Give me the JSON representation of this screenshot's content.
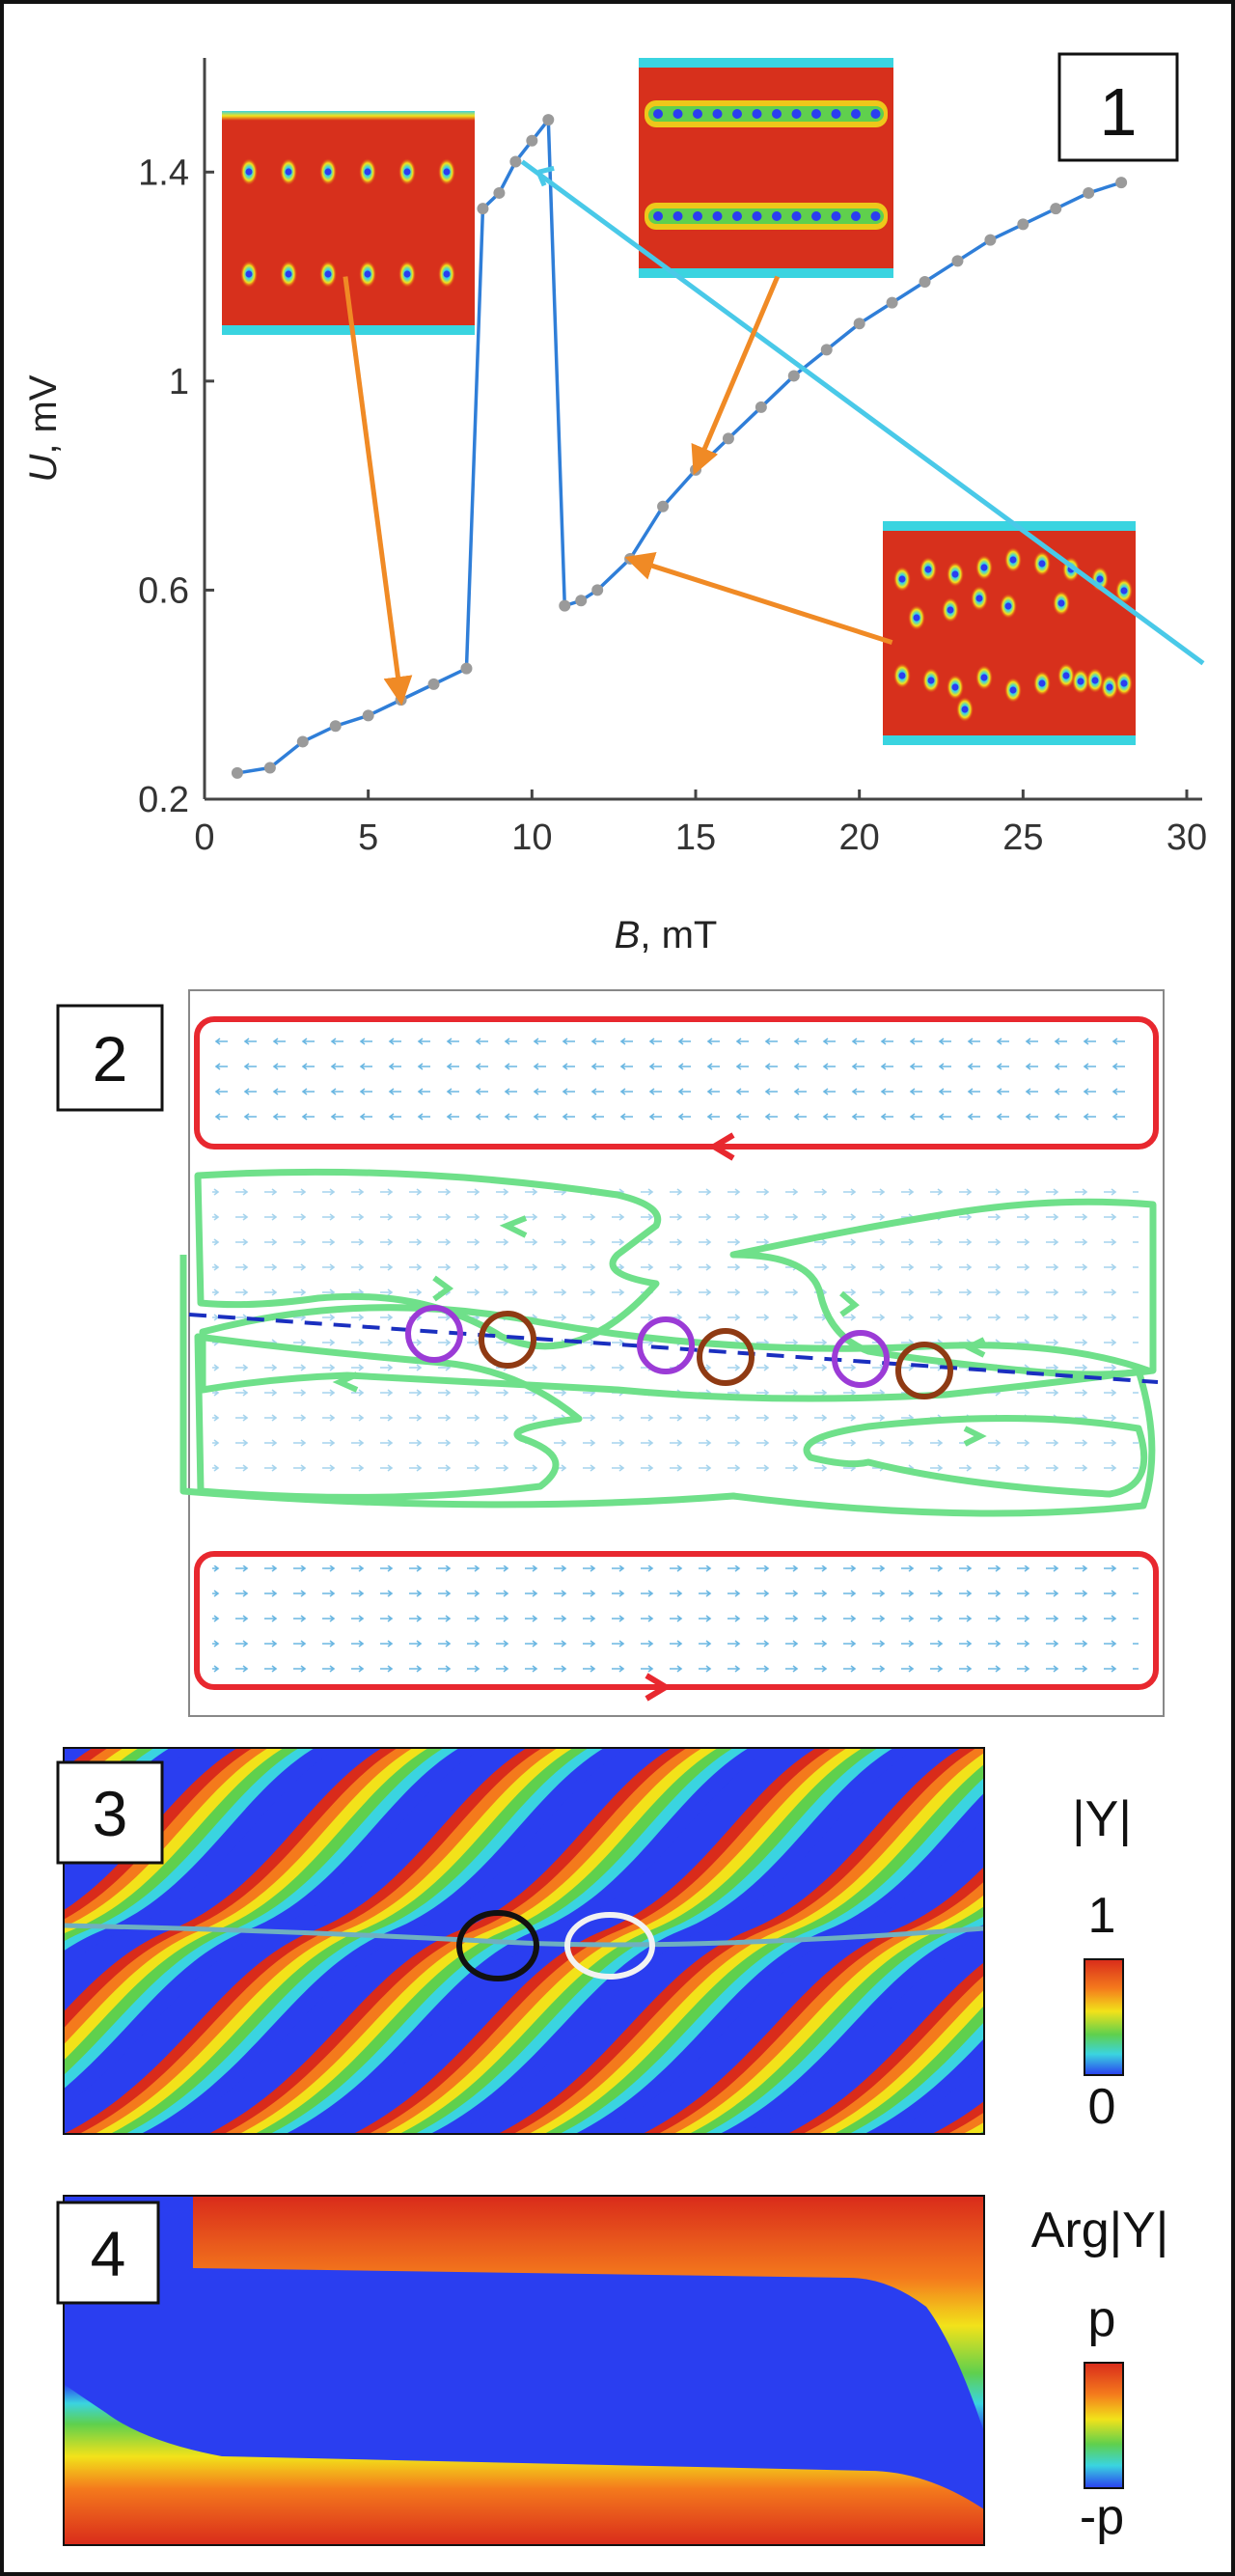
{
  "panel1": {
    "label": "1",
    "chart_data": {
      "type": "line",
      "xlabel_var": "B",
      "xlabel_unit": ", mT",
      "ylabel_var": "U",
      "ylabel_unit": ", mV",
      "xlim": [
        0,
        30
      ],
      "ylim": [
        0.2,
        1.6
      ],
      "xticks": [
        0,
        5,
        10,
        15,
        20,
        25,
        30
      ],
      "yticks": [
        0.2,
        0.6,
        1.0,
        1.4
      ],
      "ytick_labels": [
        "0.2",
        "0.6",
        "1",
        "1.4"
      ],
      "series": [
        {
          "color": "#2f7ed8",
          "x": [
            1,
            2,
            3,
            4,
            5,
            6,
            7,
            8,
            8.5,
            9,
            9.5,
            10,
            10.5,
            11,
            11.5,
            12,
            13,
            14,
            15,
            16,
            17,
            18,
            19,
            20,
            21,
            22,
            23,
            24,
            25,
            26,
            27,
            28
          ],
          "y": [
            0.25,
            0.26,
            0.31,
            0.34,
            0.36,
            0.39,
            0.42,
            0.45,
            1.33,
            1.36,
            1.42,
            1.46,
            1.5,
            0.57,
            0.58,
            0.6,
            0.66,
            0.76,
            0.83,
            0.89,
            0.95,
            1.01,
            1.06,
            1.11,
            1.15,
            1.19,
            1.23,
            1.27,
            1.3,
            1.33,
            1.36,
            1.38
          ]
        }
      ],
      "cyan_line": {
        "x": [
          9.7,
          30.5
        ],
        "y": [
          1.42,
          0.46
        ],
        "color": "#49c9e8"
      },
      "arrow_color": "#f08a25",
      "arrows": [
        {
          "from": [
            4.3,
            1.2
          ],
          "to": [
            6.0,
            0.39
          ]
        },
        {
          "from": [
            17.5,
            1.2
          ],
          "to": [
            15.0,
            0.83
          ]
        },
        {
          "from": [
            21.0,
            0.5
          ],
          "to": [
            13.0,
            0.66
          ]
        }
      ]
    },
    "insets": [
      {
        "type": "two-rows-vortices",
        "rows": 2,
        "count": 6
      },
      {
        "type": "two-chains",
        "rows": 2,
        "count": 12
      },
      {
        "type": "disordered-vortices",
        "count": 26
      }
    ]
  },
  "panel2": {
    "label": "2",
    "colors": {
      "red_loop": "#e8282f",
      "green_loop": "#6fe08a",
      "violet": "#9b3bd6",
      "brown": "#8f3a13",
      "dashed": "#1a2fbf",
      "quiver": "#3a9fd8"
    }
  },
  "panel3": {
    "label": "3",
    "colorbar_title": "|Y|",
    "colorbar_max": "1",
    "colorbar_min": "0",
    "circle_colors": [
      "#111111",
      "#f2f2f2"
    ]
  },
  "panel4": {
    "label": "4",
    "colorbar_title": "Arg|Y|",
    "colorbar_max": "p",
    "colorbar_min": "-p"
  },
  "palette": {
    "red": "#d92b1b",
    "orange": "#f47a1c",
    "yellow": "#f2e21a",
    "green": "#5fd04d",
    "cyan": "#3ad4e0",
    "blue": "#2a3ef0"
  }
}
